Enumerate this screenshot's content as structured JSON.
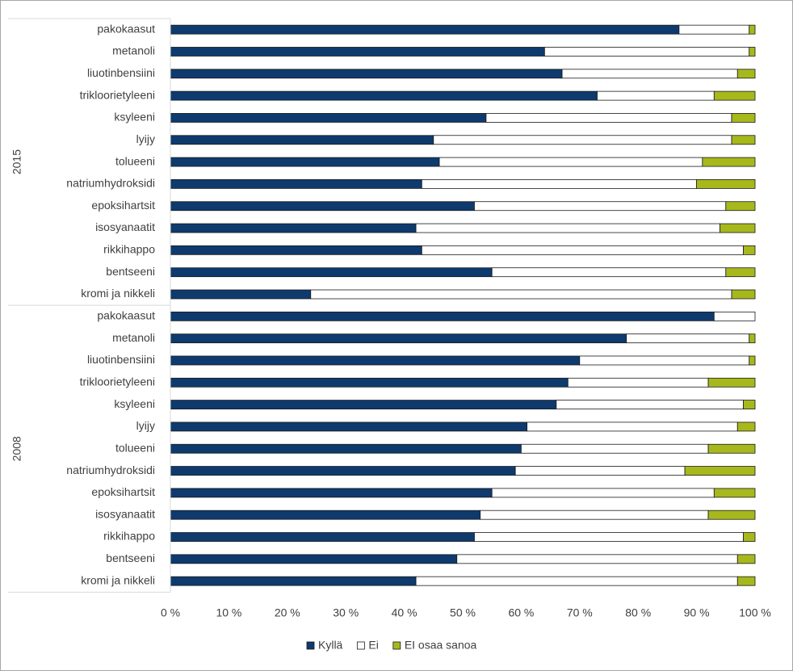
{
  "chart_data": {
    "type": "bar",
    "orientation": "horizontal",
    "stacked": true,
    "xlim": [
      0,
      100
    ],
    "xticks": [
      {
        "value": 0,
        "label": "0 %"
      },
      {
        "value": 10,
        "label": "10 %"
      },
      {
        "value": 20,
        "label": "20 %"
      },
      {
        "value": 30,
        "label": "30 %"
      },
      {
        "value": 40,
        "label": "40 %"
      },
      {
        "value": 50,
        "label": "50 %"
      },
      {
        "value": 60,
        "label": "60 %"
      },
      {
        "value": 70,
        "label": "70 %"
      },
      {
        "value": 80,
        "label": "80 %"
      },
      {
        "value": 90,
        "label": "90 %"
      },
      {
        "value": 100,
        "label": "100 %"
      }
    ],
    "legend": "bottom",
    "series": [
      {
        "name": "Kyllä",
        "color": "#0e3a6e"
      },
      {
        "name": "Ei",
        "color": "#ffffff"
      },
      {
        "name": "EI osaa sanoa",
        "color": "#a7b81c"
      }
    ],
    "groups": [
      {
        "label": "2015",
        "categories": [
          "pakokaasut",
          "metanoli",
          "liuotinbensiini",
          "trikloorietyleeni",
          "ksyleeni",
          "lyijy",
          "tolueeni",
          "natriumhydroksidi",
          "epoksihartsit",
          "isosyanaatit",
          "rikkihappo",
          "bentseeni",
          "kromi ja nikkeli"
        ],
        "series": [
          {
            "values": [
              87,
              64,
              67,
              73,
              54,
              45,
              46,
              43,
              52,
              42,
              43,
              55,
              24
            ]
          },
          {
            "values": [
              12,
              35,
              30,
              20,
              42,
              51,
              45,
              47,
              43,
              52,
              55,
              40,
              72
            ]
          },
          {
            "values": [
              1,
              1,
              3,
              7,
              4,
              4,
              9,
              10,
              5,
              6,
              2,
              5,
              4
            ]
          }
        ]
      },
      {
        "label": "2008",
        "categories": [
          "pakokaasut",
          "metanoli",
          "liuotinbensiini",
          "trikloorietyleeni",
          "ksyleeni",
          "lyijy",
          "tolueeni",
          "natriumhydroksidi",
          "epoksihartsit",
          "isosyanaatit",
          "rikkihappo",
          "bentseeni",
          "kromi ja nikkeli"
        ],
        "series": [
          {
            "values": [
              93,
              78,
              70,
              68,
              66,
              61,
              60,
              59,
              55,
              53,
              52,
              49,
              42
            ]
          },
          {
            "values": [
              7,
              21,
              29,
              24,
              32,
              36,
              32,
              29,
              38,
              39,
              46,
              48,
              55
            ]
          },
          {
            "values": [
              0,
              1,
              1,
              8,
              2,
              3,
              8,
              12,
              7,
              8,
              2,
              3,
              3
            ]
          }
        ]
      }
    ]
  }
}
